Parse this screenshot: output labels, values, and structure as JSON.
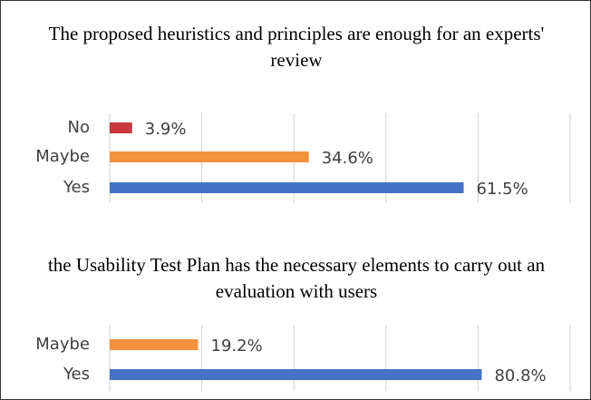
{
  "chart_data": [
    {
      "type": "barh",
      "title": "The proposed heuristics and principles are enough for an experts' review",
      "categories": [
        "No",
        "Maybe",
        "Yes"
      ],
      "values": [
        3.9,
        34.6,
        61.5
      ],
      "value_labels": [
        "3.9%",
        "34.6%",
        "61.5%"
      ],
      "colors": [
        "#c8373d",
        "#f5923e",
        "#4472c4"
      ],
      "xlim": [
        0,
        80
      ],
      "xticks": [
        0,
        16,
        32,
        48,
        64,
        80
      ],
      "grid": true
    },
    {
      "type": "barh",
      "title": "the Usability Test Plan has the necessary elements to carry out an evaluation with users",
      "categories": [
        "Maybe",
        "Yes"
      ],
      "values": [
        19.2,
        80.8
      ],
      "value_labels": [
        "19.2%",
        "80.8%"
      ],
      "colors": [
        "#f5923e",
        "#4472c4"
      ],
      "xlim": [
        0,
        100
      ],
      "xticks": [
        0,
        20,
        40,
        60,
        80,
        100
      ],
      "grid": true
    }
  ]
}
